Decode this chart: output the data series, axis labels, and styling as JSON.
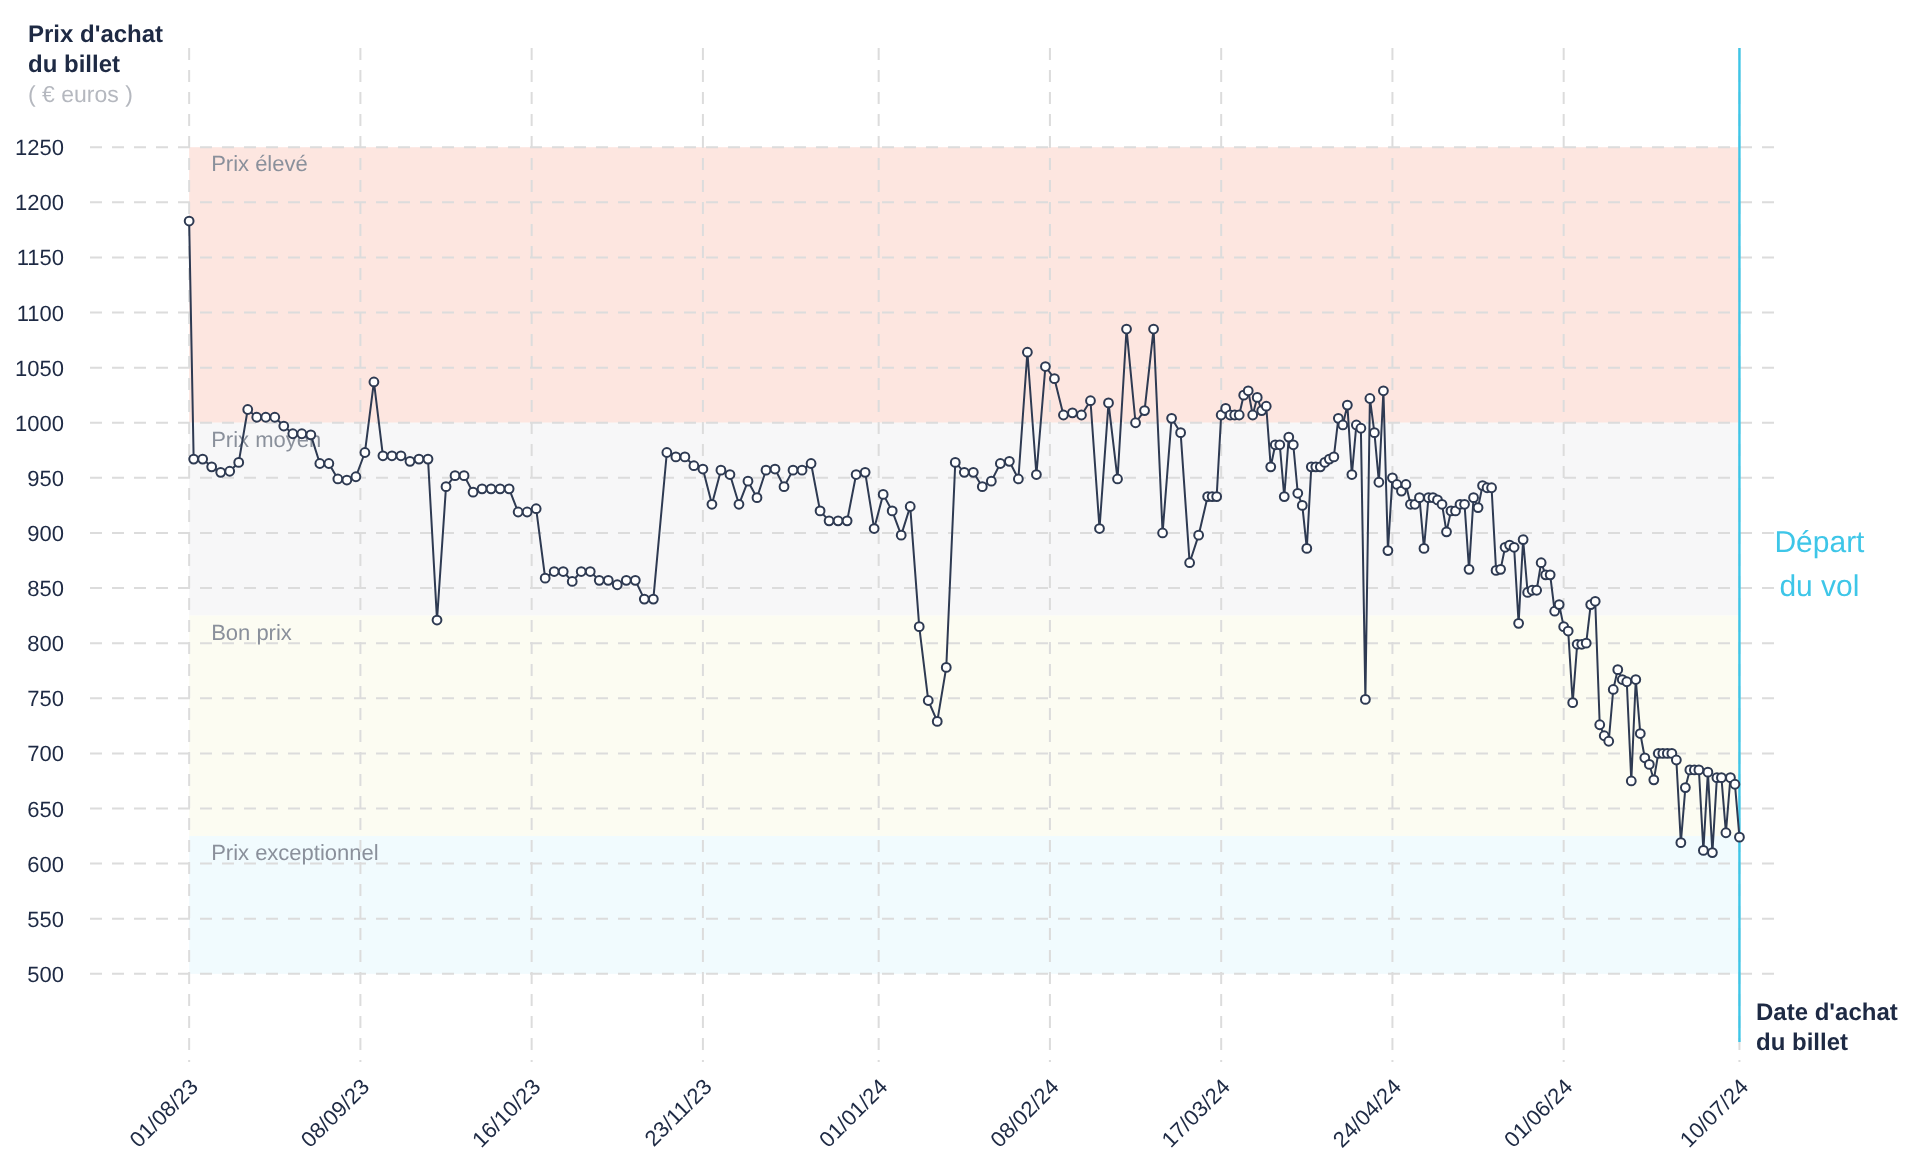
{
  "chart_data": {
    "type": "line",
    "ylabel": "Prix d'achat du billet",
    "xlabel": "Date d'achat du billet",
    "annotations": [
      "( € euros )"
    ],
    "xlim": [
      "2023-07-10",
      "2024-07-19"
    ],
    "ylim": [
      420,
      1340
    ],
    "xticks": [
      {
        "value": "2023-08-01",
        "label": "01/08/23"
      },
      {
        "value": "2023-09-08",
        "label": "08/09/23"
      },
      {
        "value": "2023-10-16",
        "label": "16/10/23"
      },
      {
        "value": "2023-11-23",
        "label": "23/11/23"
      },
      {
        "value": "2024-01-01",
        "label": "01/01/24"
      },
      {
        "value": "2024-02-08",
        "label": "08/02/24"
      },
      {
        "value": "2024-03-17",
        "label": "17/03/24"
      },
      {
        "value": "2024-04-24",
        "label": "24/04/24"
      },
      {
        "value": "2024-06-01",
        "label": "01/06/24"
      },
      {
        "value": "2024-07-10",
        "label": "10/07/24"
      }
    ],
    "yticks": [
      500,
      550,
      600,
      650,
      700,
      750,
      800,
      850,
      900,
      950,
      1000,
      1050,
      1100,
      1150,
      1200,
      1250
    ],
    "grid": true,
    "marker": "circle",
    "line_style": "solid",
    "bands": [
      {
        "axis": "y",
        "from": 1000,
        "to": 1250,
        "label": "Prix élevé",
        "color": "#fde6e0"
      },
      {
        "axis": "y",
        "from": 825,
        "to": 1000,
        "label": "Prix moyen",
        "color": "#f7f7f8"
      },
      {
        "axis": "y",
        "from": 625,
        "to": 825,
        "label": "Bon prix",
        "color": "#fcfcf2"
      },
      {
        "axis": "y",
        "from": 500,
        "to": 625,
        "label": "Prix exceptionnel",
        "color": "#f1fbfe"
      }
    ],
    "ref_lines": [
      {
        "axis": "x",
        "value": "2024-07-10",
        "label": "Départ du vol",
        "color": "#3ec6e8",
        "line_style": "solid"
      }
    ],
    "x": [
      "2023-08-01",
      "2023-08-02",
      "2023-08-04",
      "2023-08-06",
      "2023-08-08",
      "2023-08-10",
      "2023-08-12",
      "2023-08-14",
      "2023-08-16",
      "2023-08-18",
      "2023-08-20",
      "2023-08-22",
      "2023-08-24",
      "2023-08-26",
      "2023-08-28",
      "2023-08-30",
      "2023-09-01",
      "2023-09-03",
      "2023-09-05",
      "2023-09-07",
      "2023-09-09",
      "2023-09-11",
      "2023-09-13",
      "2023-09-15",
      "2023-09-17",
      "2023-09-19",
      "2023-09-21",
      "2023-09-23",
      "2023-09-25",
      "2023-09-27",
      "2023-09-29",
      "2023-10-01",
      "2023-10-03",
      "2023-10-05",
      "2023-10-07",
      "2023-10-09",
      "2023-10-11",
      "2023-10-13",
      "2023-10-15",
      "2023-10-17",
      "2023-10-19",
      "2023-10-21",
      "2023-10-23",
      "2023-10-25",
      "2023-10-27",
      "2023-10-29",
      "2023-10-31",
      "2023-11-02",
      "2023-11-04",
      "2023-11-06",
      "2023-11-08",
      "2023-11-10",
      "2023-11-12",
      "2023-11-15",
      "2023-11-17",
      "2023-11-19",
      "2023-11-21",
      "2023-11-23",
      "2023-11-25",
      "2023-11-27",
      "2023-11-29",
      "2023-12-01",
      "2023-12-03",
      "2023-12-05",
      "2023-12-07",
      "2023-12-09",
      "2023-12-11",
      "2023-12-13",
      "2023-12-15",
      "2023-12-17",
      "2023-12-19",
      "2023-12-21",
      "2023-12-23",
      "2023-12-25",
      "2023-12-27",
      "2023-12-29",
      "2023-12-31",
      "2024-01-02",
      "2024-01-04",
      "2024-01-06",
      "2024-01-08",
      "2024-01-10",
      "2024-01-12",
      "2024-01-14",
      "2024-01-16",
      "2024-01-18",
      "2024-01-20",
      "2024-01-22",
      "2024-01-24",
      "2024-01-26",
      "2024-01-28",
      "2024-01-30",
      "2024-02-01",
      "2024-02-03",
      "2024-02-05",
      "2024-02-07",
      "2024-02-09",
      "2024-02-11",
      "2024-02-13",
      "2024-02-15",
      "2024-02-17",
      "2024-02-19",
      "2024-02-21",
      "2024-02-23",
      "2024-02-25",
      "2024-02-27",
      "2024-02-29",
      "2024-03-02",
      "2024-03-04",
      "2024-03-06",
      "2024-03-08",
      "2024-03-10",
      "2024-03-12",
      "2024-03-14",
      "2024-03-15",
      "2024-03-16",
      "2024-03-17",
      "2024-03-18",
      "2024-03-19",
      "2024-03-20",
      "2024-03-21",
      "2024-03-22",
      "2024-03-23",
      "2024-03-24",
      "2024-03-25",
      "2024-03-26",
      "2024-03-27",
      "2024-03-28",
      "2024-03-29",
      "2024-03-30",
      "2024-03-31",
      "2024-04-01",
      "2024-04-02",
      "2024-04-03",
      "2024-04-04",
      "2024-04-05",
      "2024-04-06",
      "2024-04-07",
      "2024-04-08",
      "2024-04-09",
      "2024-04-10",
      "2024-04-11",
      "2024-04-12",
      "2024-04-13",
      "2024-04-14",
      "2024-04-15",
      "2024-04-16",
      "2024-04-17",
      "2024-04-18",
      "2024-04-19",
      "2024-04-20",
      "2024-04-21",
      "2024-04-22",
      "2024-04-23",
      "2024-04-24",
      "2024-04-25",
      "2024-04-26",
      "2024-04-27",
      "2024-04-28",
      "2024-04-29",
      "2024-04-30",
      "2024-05-01",
      "2024-05-02",
      "2024-05-03",
      "2024-05-04",
      "2024-05-05",
      "2024-05-06",
      "2024-05-07",
      "2024-05-08",
      "2024-05-09",
      "2024-05-10",
      "2024-05-11",
      "2024-05-12",
      "2024-05-13",
      "2024-05-14",
      "2024-05-15",
      "2024-05-16",
      "2024-05-17",
      "2024-05-18",
      "2024-05-19",
      "2024-05-20",
      "2024-05-21",
      "2024-05-22",
      "2024-05-23",
      "2024-05-24",
      "2024-05-25",
      "2024-05-26",
      "2024-05-27",
      "2024-05-28",
      "2024-05-29",
      "2024-05-30",
      "2024-05-31",
      "2024-06-01",
      "2024-06-02",
      "2024-06-03",
      "2024-06-04",
      "2024-06-05",
      "2024-06-06",
      "2024-06-07",
      "2024-06-08",
      "2024-06-09",
      "2024-06-10",
      "2024-06-11",
      "2024-06-12",
      "2024-06-13",
      "2024-06-14",
      "2024-06-15",
      "2024-06-16",
      "2024-06-17",
      "2024-06-18",
      "2024-06-19",
      "2024-06-20",
      "2024-06-21",
      "2024-06-22",
      "2024-06-23",
      "2024-06-24",
      "2024-06-25",
      "2024-06-26",
      "2024-06-27",
      "2024-06-28",
      "2024-06-29",
      "2024-06-30",
      "2024-07-01",
      "2024-07-02",
      "2024-07-03",
      "2024-07-04",
      "2024-07-05",
      "2024-07-06",
      "2024-07-07",
      "2024-07-08",
      "2024-07-09",
      "2024-07-10"
    ],
    "series": [
      {
        "color": "#2e3a52",
        "values": [
          1183,
          967,
          967,
          960,
          955,
          956,
          964,
          1012,
          1005,
          1005,
          1005,
          997,
          990,
          990,
          989,
          963,
          963,
          949,
          948,
          951,
          973,
          1037,
          970,
          970,
          970,
          965,
          967,
          967,
          821,
          942,
          952,
          952,
          937,
          940,
          940,
          940,
          940,
          919,
          919,
          922,
          859,
          865,
          865,
          856,
          865,
          865,
          857,
          857,
          853,
          857,
          857,
          840,
          840,
          973,
          969,
          969,
          961,
          958,
          926,
          957,
          953,
          926,
          947,
          932,
          957,
          958,
          942,
          957,
          957,
          963,
          920,
          911,
          911,
          911,
          953,
          955,
          904,
          935,
          920,
          898,
          924,
          815,
          748,
          729,
          778,
          964,
          955,
          955,
          942,
          947,
          963,
          965,
          949,
          1064,
          953,
          1051,
          1040,
          1007,
          1009,
          1007,
          1020,
          904,
          1018,
          949,
          1085,
          1000,
          1011,
          1085,
          900,
          1004,
          991,
          873,
          898,
          933,
          933,
          933,
          1007,
          1013,
          1007,
          1007,
          1007,
          1025,
          1029,
          1007,
          1023,
          1011,
          1015,
          960,
          980,
          980,
          933,
          987,
          980,
          936,
          925,
          886,
          960,
          960,
          960,
          964,
          967,
          969,
          1004,
          998,
          1016,
          953,
          998,
          995,
          749,
          1022,
          991,
          946,
          1029,
          884,
          950,
          944,
          938,
          944,
          926,
          926,
          932,
          886,
          932,
          932,
          930,
          926,
          901,
          920,
          920,
          926,
          926,
          867,
          932,
          923,
          943,
          941,
          941,
          866,
          867,
          887,
          889,
          887,
          818,
          894,
          846,
          848,
          848,
          873,
          862,
          862,
          829,
          835,
          815,
          811,
          746,
          799,
          799,
          800,
          835,
          838,
          726,
          716,
          711,
          758,
          776,
          767,
          765,
          675,
          767,
          718,
          696,
          690,
          676,
          700,
          700,
          700,
          700,
          694,
          619,
          669,
          685,
          685,
          685,
          612,
          683,
          610,
          678,
          678,
          628,
          678,
          672,
          624
        ]
      }
    ]
  }
}
